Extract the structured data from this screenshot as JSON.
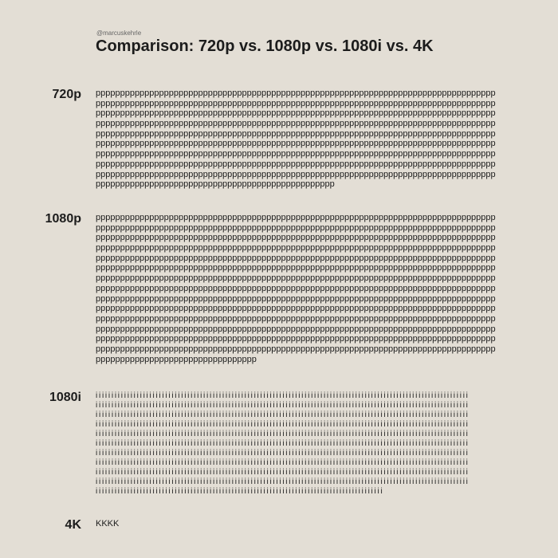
{
  "header": {
    "handle": "@marcuskehrle",
    "title": "Comparison: 720p vs. 1080p vs. 1080i vs. 4K"
  },
  "sections": [
    {
      "label": "720p",
      "lines": [
        "pppppppppppppppppppppppppppppppppppppppppppppppppppppppppppppppppppppppppppppppppp",
        "pppppppppppppppppppppppppppppppppppppppppppppppppppppppppppppppppppppppppppppppppp",
        "pppppppppppppppppppppppppppppppppppppppppppppppppppppppppppppppppppppppppppppppppp",
        "pppppppppppppppppppppppppppppppppppppppppppppppppppppppppppppppppppppppppppppppppp",
        "pppppppppppppppppppppppppppppppppppppppppppppppppppppppppppppppppppppppppppppppppp",
        "pppppppppppppppppppppppppppppppppppppppppppppppppppppppppppppppppppppppppppppppppp",
        "pppppppppppppppppppppppppppppppppppppppppppppppppppppppppppppppppppppppppppppppppp",
        "pppppppppppppppppppppppppppppppppppppppppppppppppppppppppppppppppppppppppppppppppp",
        "pppppppppppppppppppppppppppppppppppppppppppppppppppppppppppppppppppppppppppppppppp",
        "ppppppppppppppppppppppppppppppppppppppppppppppppp"
      ]
    },
    {
      "label": "1080p",
      "lines": [
        "pppppppppppppppppppppppppppppppppppppppppppppppppppppppppppppppppppppppppppppppppp",
        "pppppppppppppppppppppppppppppppppppppppppppppppppppppppppppppppppppppppppppppppppp",
        "pppppppppppppppppppppppppppppppppppppppppppppppppppppppppppppppppppppppppppppppppp",
        "pppppppppppppppppppppppppppppppppppppppppppppppppppppppppppppppppppppppppppppppppp",
        "pppppppppppppppppppppppppppppppppppppppppppppppppppppppppppppppppppppppppppppppppp",
        "pppppppppppppppppppppppppppppppppppppppppppppppppppppppppppppppppppppppppppppppppp",
        "pppppppppppppppppppppppppppppppppppppppppppppppppppppppppppppppppppppppppppppppppp",
        "pppppppppppppppppppppppppppppppppppppppppppppppppppppppppppppppppppppppppppppppppp",
        "pppppppppppppppppppppppppppppppppppppppppppppppppppppppppppppppppppppppppppppppppp",
        "pppppppppppppppppppppppppppppppppppppppppppppppppppppppppppppppppppppppppppppppppp",
        "pppppppppppppppppppppppppppppppppppppppppppppppppppppppppppppppppppppppppppppppppp",
        "pppppppppppppppppppppppppppppppppppppppppppppppppppppppppppppppppppppppppppppppppp",
        "pppppppppppppppppppppppppppppppppppppppppppppppppppppppppppppppppppppppppppppppppp",
        "pppppppppppppppppppppppppppppppppppppppppppppppppppppppppppppppppppppppppppppppppp",
        "ppppppppppppppppppppppppppppppppp"
      ]
    },
    {
      "label": "1080i",
      "lines": [
        "iiiiiiiiiiiiiiiiiiiiiiiiiiiiiiiiiiiiiiiiiiiiiiiiiiiiiiiiiiiiiiiiiiiiiiiiiiiiiiiiiiiiiiiiiiiiiiiiiiiiiiiiiiiiiiiiiiiiii",
        "iiiiiiiiiiiiiiiiiiiiiiiiiiiiiiiiiiiiiiiiiiiiiiiiiiiiiiiiiiiiiiiiiiiiiiiiiiiiiiiiiiiiiiiiiiiiiiiiiiiiiiiiiiiiiiiiiiiiii",
        "iiiiiiiiiiiiiiiiiiiiiiiiiiiiiiiiiiiiiiiiiiiiiiiiiiiiiiiiiiiiiiiiiiiiiiiiiiiiiiiiiiiiiiiiiiiiiiiiiiiiiiiiiiiiiiiiiiiiii",
        "iiiiiiiiiiiiiiiiiiiiiiiiiiiiiiiiiiiiiiiiiiiiiiiiiiiiiiiiiiiiiiiiiiiiiiiiiiiiiiiiiiiiiiiiiiiiiiiiiiiiiiiiiiiiiiiiiiiiii",
        "iiiiiiiiiiiiiiiiiiiiiiiiiiiiiiiiiiiiiiiiiiiiiiiiiiiiiiiiiiiiiiiiiiiiiiiiiiiiiiiiiiiiiiiiiiiiiiiiiiiiiiiiiiiiiiiiiiiiii",
        "iiiiiiiiiiiiiiiiiiiiiiiiiiiiiiiiiiiiiiiiiiiiiiiiiiiiiiiiiiiiiiiiiiiiiiiiiiiiiiiiiiiiiiiiiiiiiiiiiiiiiiiiiiiiiiiiiiiiii",
        "iiiiiiiiiiiiiiiiiiiiiiiiiiiiiiiiiiiiiiiiiiiiiiiiiiiiiiiiiiiiiiiiiiiiiiiiiiiiiiiiiiiiiiiiiiiiiiiiiiiiiiiiiiiiiiiiiiiiii",
        "iiiiiiiiiiiiiiiiiiiiiiiiiiiiiiiiiiiiiiiiiiiiiiiiiiiiiiiiiiiiiiiiiiiiiiiiiiiiiiiiiiiiiiiiiiiiiiiiiiiiiiiiiiiiiiiiiiiiii",
        "iiiiiiiiiiiiiiiiiiiiiiiiiiiiiiiiiiiiiiiiiiiiiiiiiiiiiiiiiiiiiiiiiiiiiiiiiiiiiiiiiiiiiiiiiiiiiiiiiiiiiiiiiiiiiiiiiiiiii",
        "iiiiiiiiiiiiiiiiiiiiiiiiiiiiiiiiiiiiiiiiiiiiiiiiiiiiiiiiiiiiiiiiiiiiiiiiiiiiiiiiiiiiiiiiiiiiiiiiiiiiiiiiiiiiiiiiiiiiii",
        "iiiiiiiiiiiiiiiiiiiiiiiiiiiiiiiiiiiiiiiiiiiiiiiiiiiiiiiiiiiiiiiiiiiiiiiiiiiiiiiiiiiiiiiiiii"
      ]
    },
    {
      "label": "4K",
      "lines": [
        "KKKK"
      ]
    }
  ]
}
